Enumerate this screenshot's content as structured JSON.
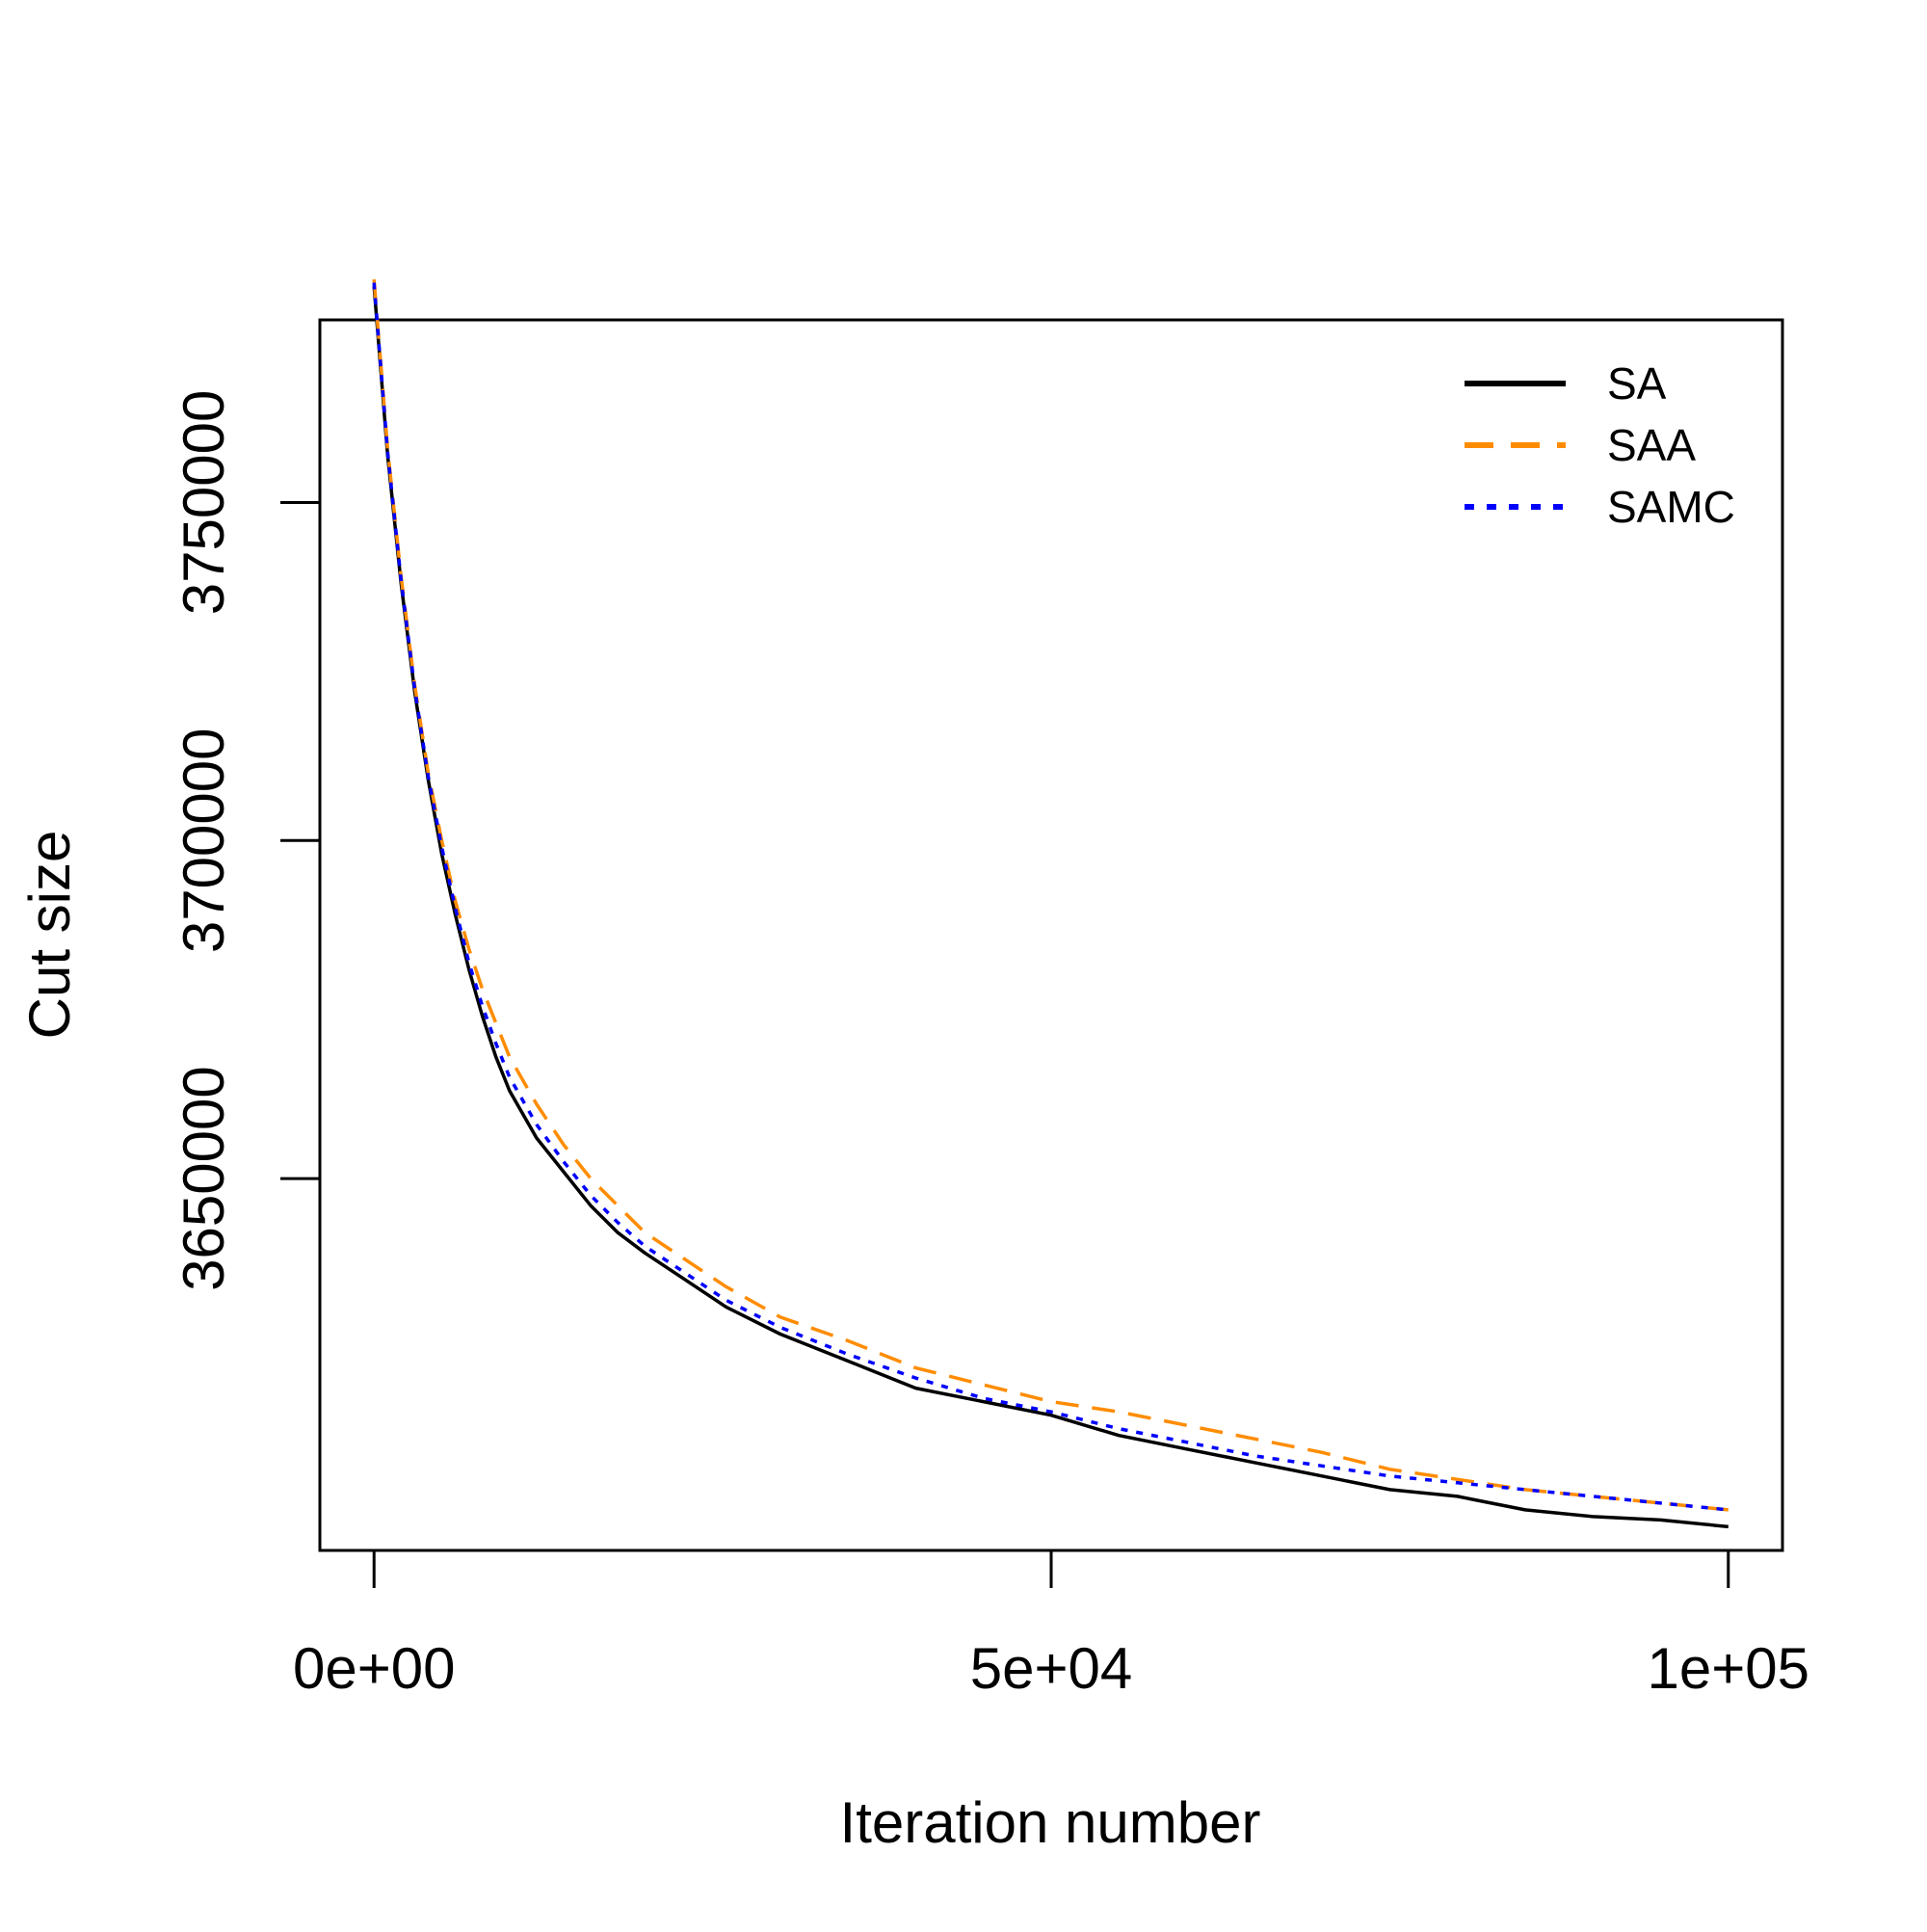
{
  "chart_data": {
    "type": "line",
    "title": "",
    "xlabel": "Iteration number",
    "ylabel": "Cut size",
    "xlim": [
      -4000,
      104000
    ],
    "ylim": [
      3595000,
      3777000
    ],
    "x_ticks": [
      0,
      50000,
      100000
    ],
    "x_tick_labels": [
      "0e+00",
      "5e+04",
      "1e+05"
    ],
    "y_ticks": [
      3650000,
      3700000,
      3750000
    ],
    "y_tick_labels": [
      "3650000",
      "3700000",
      "3750000"
    ],
    "grid": false,
    "legend_position": "top-right",
    "x": [
      0,
      1000,
      2000,
      3000,
      4000,
      5000,
      6000,
      7000,
      8000,
      9000,
      10000,
      12000,
      14000,
      16000,
      18000,
      20000,
      23000,
      26000,
      30000,
      35000,
      40000,
      45000,
      50000,
      55000,
      60000,
      65000,
      70000,
      75000,
      80000,
      85000,
      90000,
      95000,
      100000
    ],
    "series": [
      {
        "name": "SA",
        "color": "#000000",
        "dash": "solid",
        "values": [
          3782000,
          3757000,
          3738000,
          3722000,
          3709000,
          3698000,
          3689000,
          3681000,
          3674000,
          3668000,
          3663000,
          3656000,
          3651000,
          3646000,
          3642000,
          3639000,
          3635000,
          3631000,
          3627000,
          3623000,
          3619000,
          3617000,
          3615000,
          3612000,
          3610000,
          3608000,
          3606000,
          3604000,
          3603000,
          3601000,
          3600000,
          3599500,
          3598500
        ]
      },
      {
        "name": "SAA",
        "color": "#ff8c00",
        "dash": "dashed",
        "values": [
          3783000,
          3758000,
          3739000,
          3723000,
          3710000,
          3700000,
          3691000,
          3684000,
          3678000,
          3673000,
          3668000,
          3661000,
          3655000,
          3650000,
          3646000,
          3642000,
          3638000,
          3634000,
          3629500,
          3626000,
          3622000,
          3619500,
          3617000,
          3615500,
          3613500,
          3611500,
          3609500,
          3607000,
          3605500,
          3604000,
          3603000,
          3602000,
          3601000
        ]
      },
      {
        "name": "SAMC",
        "color": "#0000ff",
        "dash": "dotted",
        "values": [
          3782500,
          3757500,
          3738500,
          3722500,
          3709500,
          3699000,
          3690000,
          3682000,
          3675500,
          3670000,
          3665000,
          3658000,
          3652500,
          3647500,
          3643500,
          3640000,
          3636000,
          3632000,
          3628000,
          3624000,
          3620500,
          3617500,
          3615500,
          3613000,
          3611000,
          3609000,
          3607500,
          3606000,
          3605000,
          3604000,
          3603000,
          3602000,
          3601000
        ]
      }
    ]
  }
}
